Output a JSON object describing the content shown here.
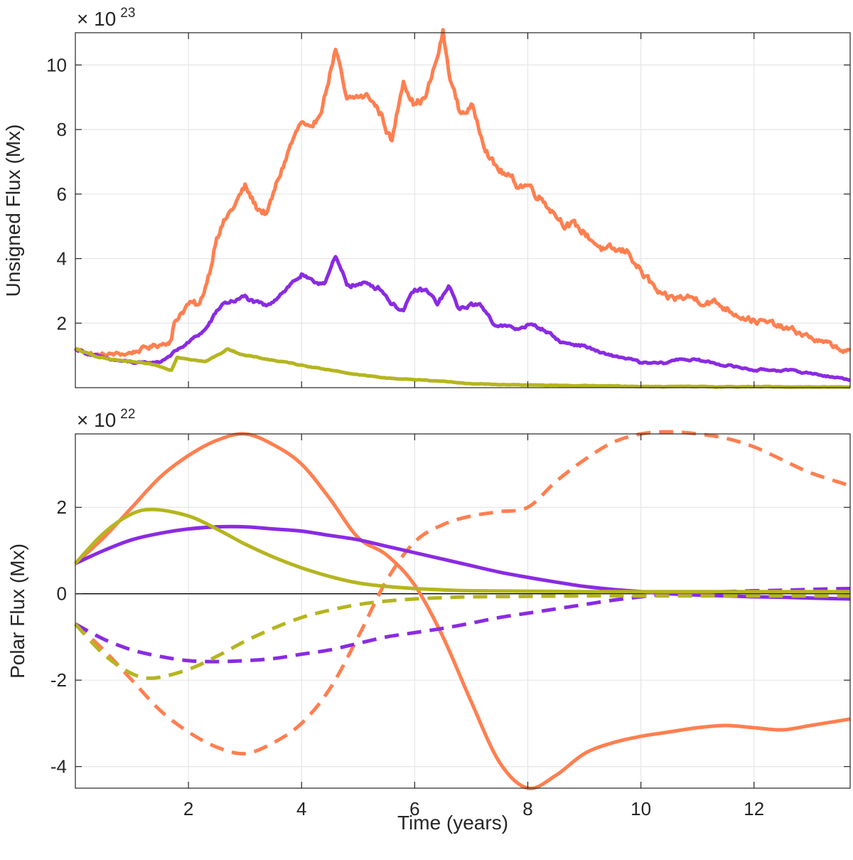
{
  "colors": {
    "orange": "#FF7F50",
    "purple": "#8A2BE2",
    "olive": "#B5B520"
  },
  "chart_data": [
    {
      "type": "line",
      "id": "unsigned",
      "xlabel": "",
      "ylabel": "Unsigned Flux (Mx)",
      "exponent_prefix": "× 10",
      "exponent_power": "23",
      "xlim": [
        0,
        13.7
      ],
      "ylim": [
        0,
        11
      ],
      "xticks": [
        2,
        4,
        6,
        8,
        10,
        12
      ],
      "yticks": [
        2,
        4,
        6,
        8,
        10
      ],
      "grid": true,
      "series": [
        {
          "name": "orange",
          "color": "#FF7F50",
          "style": "solid",
          "noise": 0.22,
          "x": [
            0,
            0.4,
            0.9,
            1.2,
            1.5,
            1.7,
            1.75,
            1.85,
            2.0,
            2.2,
            2.4,
            2.5,
            2.8,
            3.0,
            3.2,
            3.4,
            3.6,
            3.8,
            4.0,
            4.2,
            4.4,
            4.6,
            4.8,
            5.0,
            5.2,
            5.4,
            5.6,
            5.8,
            6.0,
            6.2,
            6.4,
            6.5,
            6.6,
            6.8,
            7.0,
            7.2,
            7.4,
            7.6,
            7.8,
            8.0,
            8.3,
            8.6,
            9.0,
            9.4,
            9.8,
            10.0,
            10.4,
            10.8,
            11.2,
            11.6,
            12.0,
            12.4,
            12.8,
            13.2,
            13.7
          ],
          "y": [
            1.2,
            1.0,
            1.05,
            1.2,
            1.35,
            1.5,
            2.0,
            2.3,
            2.6,
            2.5,
            3.8,
            4.8,
            5.6,
            6.2,
            5.6,
            5.4,
            6.5,
            7.5,
            8.2,
            7.8,
            9.0,
            10.5,
            8.8,
            9.0,
            9.0,
            8.5,
            7.6,
            9.6,
            8.8,
            9.0,
            10.2,
            11.0,
            9.8,
            8.5,
            8.7,
            7.8,
            6.9,
            6.6,
            6.3,
            6.3,
            5.8,
            5.2,
            4.8,
            4.2,
            4.2,
            3.6,
            2.7,
            2.8,
            2.7,
            2.4,
            2.1,
            1.9,
            1.7,
            1.4,
            1.1
          ]
        },
        {
          "name": "purple",
          "color": "#8A2BE2",
          "style": "solid",
          "noise": 0.12,
          "x": [
            0,
            0.5,
            0.9,
            1.2,
            1.5,
            1.75,
            2.0,
            2.3,
            2.6,
            2.8,
            3.0,
            3.2,
            3.4,
            3.6,
            3.8,
            4.0,
            4.2,
            4.4,
            4.6,
            4.8,
            5.0,
            5.2,
            5.4,
            5.6,
            5.8,
            6.0,
            6.2,
            6.4,
            6.6,
            6.8,
            7.0,
            7.2,
            7.4,
            7.6,
            7.8,
            8.0,
            8.3,
            8.6,
            9.0,
            9.4,
            9.8,
            10.0,
            10.4,
            10.7,
            11.0,
            11.5,
            12.0,
            12.5,
            13.0,
            13.7
          ],
          "y": [
            1.2,
            0.9,
            0.8,
            0.75,
            0.8,
            1.1,
            1.4,
            1.8,
            2.6,
            2.7,
            2.8,
            2.6,
            2.5,
            2.9,
            3.2,
            3.5,
            3.2,
            3.3,
            4.0,
            3.2,
            3.2,
            3.2,
            3.1,
            2.6,
            2.4,
            3.0,
            3.0,
            2.6,
            3.1,
            2.4,
            2.6,
            2.5,
            2.0,
            1.9,
            1.8,
            1.95,
            1.8,
            1.4,
            1.3,
            1.0,
            0.9,
            0.75,
            0.75,
            0.9,
            0.85,
            0.7,
            0.55,
            0.55,
            0.45,
            0.25
          ]
        },
        {
          "name": "olive",
          "color": "#B5B520",
          "style": "solid",
          "noise": 0.05,
          "x": [
            0,
            0.3,
            0.7,
            1.0,
            1.4,
            1.7,
            1.8,
            2.0,
            2.3,
            2.7,
            3.0,
            3.5,
            4.0,
            4.5,
            5.0,
            5.5,
            6.0,
            6.5,
            7.0,
            7.5,
            8.0,
            8.5,
            9.0,
            9.5,
            10.0,
            11.0,
            12.0,
            13.7
          ],
          "y": [
            1.2,
            1.0,
            0.85,
            0.8,
            0.7,
            0.55,
            0.95,
            0.9,
            0.8,
            1.2,
            1.0,
            0.85,
            0.7,
            0.55,
            0.4,
            0.3,
            0.25,
            0.2,
            0.12,
            0.1,
            0.08,
            0.07,
            0.06,
            0.05,
            0.04,
            0.03,
            0.03,
            0.02
          ]
        }
      ]
    },
    {
      "type": "line",
      "id": "polar",
      "xlabel": "Time (years)",
      "ylabel": "Polar Flux (Mx)",
      "exponent_prefix": "× 10",
      "exponent_power": "22",
      "xlim": [
        0,
        13.7
      ],
      "ylim": [
        -4.5,
        3.7
      ],
      "xticks": [
        2,
        4,
        6,
        8,
        10,
        12
      ],
      "yticks": [
        -4,
        -2,
        0,
        2
      ],
      "grid": true,
      "zero_line": true,
      "series": [
        {
          "name": "orange-north",
          "color": "#FF7F50",
          "style": "solid",
          "x": [
            0,
            0.5,
            1.0,
            1.5,
            2.0,
            2.5,
            3.0,
            3.5,
            4.0,
            4.5,
            5.0,
            5.5,
            6.0,
            6.5,
            7.0,
            7.5,
            8.0,
            8.5,
            9.0,
            9.5,
            10.0,
            10.5,
            11.0,
            11.5,
            12.0,
            12.5,
            13.0,
            13.7
          ],
          "y": [
            0.7,
            1.3,
            2.0,
            2.7,
            3.2,
            3.55,
            3.7,
            3.45,
            3.0,
            2.2,
            1.3,
            0.9,
            0.2,
            -1.0,
            -2.5,
            -3.9,
            -4.5,
            -4.2,
            -3.7,
            -3.45,
            -3.3,
            -3.2,
            -3.1,
            -3.05,
            -3.1,
            -3.15,
            -3.05,
            -2.9
          ]
        },
        {
          "name": "orange-south",
          "color": "#FF7F50",
          "style": "dashed",
          "x": [
            0,
            0.5,
            1.0,
            1.5,
            2.0,
            2.5,
            3.0,
            3.5,
            4.0,
            4.5,
            5.0,
            5.5,
            6.0,
            6.5,
            7.0,
            7.5,
            8.0,
            8.5,
            9.0,
            9.5,
            10.0,
            10.5,
            11.0,
            11.5,
            12.0,
            12.5,
            13.0,
            13.7
          ],
          "y": [
            -0.7,
            -1.3,
            -2.0,
            -2.7,
            -3.2,
            -3.55,
            -3.7,
            -3.45,
            -3.0,
            -2.2,
            -1.0,
            0.3,
            1.2,
            1.6,
            1.8,
            1.9,
            2.0,
            2.6,
            3.1,
            3.5,
            3.7,
            3.75,
            3.7,
            3.6,
            3.4,
            3.1,
            2.8,
            2.5
          ]
        },
        {
          "name": "purple-north",
          "color": "#8A2BE2",
          "style": "solid",
          "x": [
            0,
            0.5,
            1.0,
            1.5,
            2.0,
            2.5,
            3.0,
            3.5,
            4.0,
            4.5,
            5.0,
            5.5,
            6.0,
            6.5,
            7.0,
            7.5,
            8.0,
            8.5,
            9.0,
            9.5,
            10.0,
            10.5,
            11.0,
            11.5,
            12.0,
            12.5,
            13.0,
            13.7
          ],
          "y": [
            0.7,
            1.0,
            1.25,
            1.4,
            1.5,
            1.55,
            1.55,
            1.5,
            1.45,
            1.35,
            1.25,
            1.1,
            0.95,
            0.8,
            0.65,
            0.5,
            0.38,
            0.27,
            0.17,
            0.1,
            0.05,
            0.0,
            -0.03,
            -0.05,
            -0.07,
            -0.08,
            -0.1,
            -0.12
          ]
        },
        {
          "name": "purple-south",
          "color": "#8A2BE2",
          "style": "dashed",
          "x": [
            0,
            0.5,
            1.0,
            1.5,
            2.0,
            2.5,
            3.0,
            3.5,
            4.0,
            4.5,
            5.0,
            5.5,
            6.0,
            6.5,
            7.0,
            7.5,
            8.0,
            8.5,
            9.0,
            9.5,
            10.0,
            10.5,
            11.0,
            11.5,
            12.0,
            12.5,
            13.0,
            13.7
          ],
          "y": [
            -0.7,
            -1.05,
            -1.3,
            -1.45,
            -1.55,
            -1.57,
            -1.55,
            -1.5,
            -1.4,
            -1.3,
            -1.15,
            -1.0,
            -0.9,
            -0.8,
            -0.68,
            -0.55,
            -0.45,
            -0.35,
            -0.25,
            -0.15,
            -0.07,
            0.0,
            0.03,
            0.05,
            0.07,
            0.08,
            0.1,
            0.12
          ]
        },
        {
          "name": "olive-north",
          "color": "#B5B520",
          "style": "solid",
          "x": [
            0,
            0.5,
            1.0,
            1.4,
            2.0,
            2.5,
            3.0,
            3.5,
            4.0,
            4.5,
            5.0,
            5.5,
            6.0,
            6.5,
            7.0,
            8.0,
            9.0,
            10.0,
            11.0,
            12.0,
            13.0,
            13.7
          ],
          "y": [
            0.7,
            1.4,
            1.85,
            1.95,
            1.8,
            1.5,
            1.15,
            0.85,
            0.6,
            0.4,
            0.25,
            0.17,
            0.12,
            0.09,
            0.07,
            0.06,
            0.05,
            0.05,
            0.05,
            0.05,
            0.05,
            0.05
          ]
        },
        {
          "name": "olive-south",
          "color": "#B5B520",
          "style": "dashed",
          "x": [
            0,
            0.5,
            1.0,
            1.4,
            2.0,
            2.5,
            3.0,
            3.5,
            4.0,
            4.5,
            5.0,
            5.5,
            6.0,
            6.5,
            7.0,
            8.0,
            9.0,
            10.0,
            11.0,
            12.0,
            13.0,
            13.7
          ],
          "y": [
            -0.7,
            -1.4,
            -1.85,
            -1.95,
            -1.75,
            -1.45,
            -1.1,
            -0.8,
            -0.55,
            -0.38,
            -0.25,
            -0.17,
            -0.12,
            -0.09,
            -0.07,
            -0.06,
            -0.05,
            -0.05,
            -0.05,
            -0.05,
            -0.05,
            -0.05
          ]
        }
      ]
    }
  ]
}
